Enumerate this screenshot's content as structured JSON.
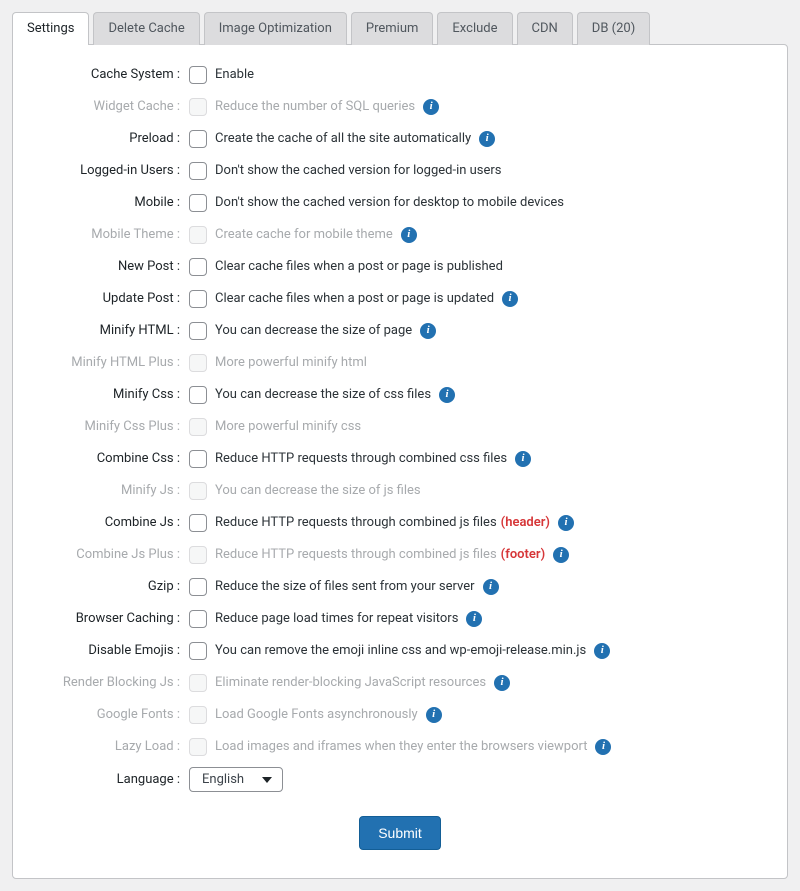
{
  "tabs": [
    {
      "label": "Settings",
      "active": true
    },
    {
      "label": "Delete Cache",
      "active": false
    },
    {
      "label": "Image Optimization",
      "active": false
    },
    {
      "label": "Premium",
      "active": false
    },
    {
      "label": "Exclude",
      "active": false
    },
    {
      "label": "CDN",
      "active": false
    },
    {
      "label": "DB (20)",
      "active": false
    }
  ],
  "settings": [
    {
      "key": "cache-system",
      "label": "Cache System :",
      "desc": "Enable",
      "info": false,
      "disabled": false,
      "suffix": ""
    },
    {
      "key": "widget-cache",
      "label": "Widget Cache :",
      "desc": "Reduce the number of SQL queries",
      "info": true,
      "disabled": true,
      "suffix": ""
    },
    {
      "key": "preload",
      "label": "Preload :",
      "desc": "Create the cache of all the site automatically",
      "info": true,
      "disabled": false,
      "suffix": ""
    },
    {
      "key": "logged-in-users",
      "label": "Logged-in Users :",
      "desc": "Don't show the cached version for logged-in users",
      "info": false,
      "disabled": false,
      "suffix": ""
    },
    {
      "key": "mobile",
      "label": "Mobile :",
      "desc": "Don't show the cached version for desktop to mobile devices",
      "info": false,
      "disabled": false,
      "suffix": ""
    },
    {
      "key": "mobile-theme",
      "label": "Mobile Theme :",
      "desc": "Create cache for mobile theme",
      "info": true,
      "disabled": true,
      "suffix": ""
    },
    {
      "key": "new-post",
      "label": "New Post :",
      "desc": "Clear cache files when a post or page is published",
      "info": false,
      "disabled": false,
      "suffix": ""
    },
    {
      "key": "update-post",
      "label": "Update Post :",
      "desc": "Clear cache files when a post or page is updated",
      "info": true,
      "disabled": false,
      "suffix": ""
    },
    {
      "key": "minify-html",
      "label": "Minify HTML :",
      "desc": "You can decrease the size of page",
      "info": true,
      "disabled": false,
      "suffix": ""
    },
    {
      "key": "minify-html-plus",
      "label": "Minify HTML Plus :",
      "desc": "More powerful minify html",
      "info": false,
      "disabled": true,
      "suffix": ""
    },
    {
      "key": "minify-css",
      "label": "Minify Css :",
      "desc": "You can decrease the size of css files",
      "info": true,
      "disabled": false,
      "suffix": ""
    },
    {
      "key": "minify-css-plus",
      "label": "Minify Css Plus :",
      "desc": "More powerful minify css",
      "info": false,
      "disabled": true,
      "suffix": ""
    },
    {
      "key": "combine-css",
      "label": "Combine Css :",
      "desc": "Reduce HTTP requests through combined css files",
      "info": true,
      "disabled": false,
      "suffix": ""
    },
    {
      "key": "minify-js",
      "label": "Minify Js :",
      "desc": "You can decrease the size of js files",
      "info": false,
      "disabled": true,
      "suffix": ""
    },
    {
      "key": "combine-js",
      "label": "Combine Js :",
      "desc": "Reduce HTTP requests through combined js files",
      "info": true,
      "disabled": false,
      "suffix": "(header)"
    },
    {
      "key": "combine-js-plus",
      "label": "Combine Js Plus :",
      "desc": "Reduce HTTP requests through combined js files",
      "info": true,
      "disabled": true,
      "suffix": "(footer)"
    },
    {
      "key": "gzip",
      "label": "Gzip :",
      "desc": "Reduce the size of files sent from your server",
      "info": true,
      "disabled": false,
      "suffix": ""
    },
    {
      "key": "browser-caching",
      "label": "Browser Caching :",
      "desc": "Reduce page load times for repeat visitors",
      "info": true,
      "disabled": false,
      "suffix": ""
    },
    {
      "key": "disable-emojis",
      "label": "Disable Emojis :",
      "desc": "You can remove the emoji inline css and wp-emoji-release.min.js",
      "info": true,
      "disabled": false,
      "suffix": ""
    },
    {
      "key": "render-blocking-js",
      "label": "Render Blocking Js :",
      "desc": "Eliminate render-blocking JavaScript resources",
      "info": true,
      "disabled": true,
      "suffix": ""
    },
    {
      "key": "google-fonts",
      "label": "Google Fonts :",
      "desc": "Load Google Fonts asynchronously",
      "info": true,
      "disabled": true,
      "suffix": ""
    },
    {
      "key": "lazy-load",
      "label": "Lazy Load :",
      "desc": "Load images and iframes when they enter the browsers viewport",
      "info": true,
      "disabled": true,
      "suffix": ""
    }
  ],
  "language": {
    "label": "Language :",
    "value": "English"
  },
  "submit": {
    "label": "Submit"
  },
  "info_glyph": "i",
  "colors": {
    "page_bg": "#f0f0f1",
    "panel_bg": "#ffffff",
    "border": "#c3c4c7",
    "tab_bg": "#dcdcde",
    "text": "#3c434a",
    "disabled_text": "#a7aaad",
    "info_bg": "#2271b1",
    "suffix": "#d63638",
    "submit_bg": "#2271b1"
  }
}
